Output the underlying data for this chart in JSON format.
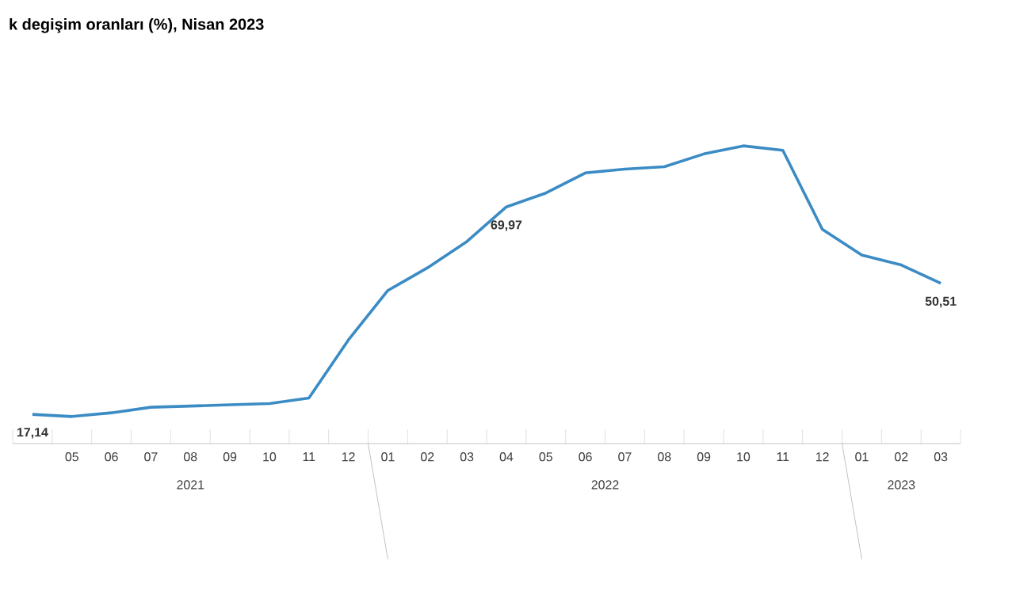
{
  "chart_data": {
    "type": "line",
    "title": "k degişim oranları (%), Nisan 2023",
    "categories": [
      null,
      "05",
      "06",
      "07",
      "08",
      "09",
      "10",
      "11",
      "12",
      "01",
      "02",
      "03",
      "04",
      "05",
      "06",
      "07",
      "08",
      "09",
      "10",
      "11",
      "12",
      "01",
      "02",
      "03"
    ],
    "series": [
      {
        "color": "#3b8bc4",
        "values": [
          17.14,
          16.59,
          17.53,
          18.95,
          19.25,
          19.58,
          19.89,
          21.31,
          36.08,
          48.69,
          54.44,
          61.14,
          69.97,
          73.5,
          78.62,
          79.6,
          80.21,
          83.45,
          85.51,
          84.39,
          64.27,
          57.68,
          55.18,
          50.51
        ],
        "value_labels": [
          "17,14",
          null,
          null,
          null,
          null,
          null,
          null,
          null,
          null,
          null,
          null,
          null,
          "69,97",
          null,
          null,
          null,
          null,
          null,
          null,
          null,
          null,
          null,
          null,
          "50,51"
        ]
      }
    ],
    "annotations": [
      "2021",
      "2022",
      "2023"
    ],
    "marker": "none",
    "line_style": "solid"
  }
}
